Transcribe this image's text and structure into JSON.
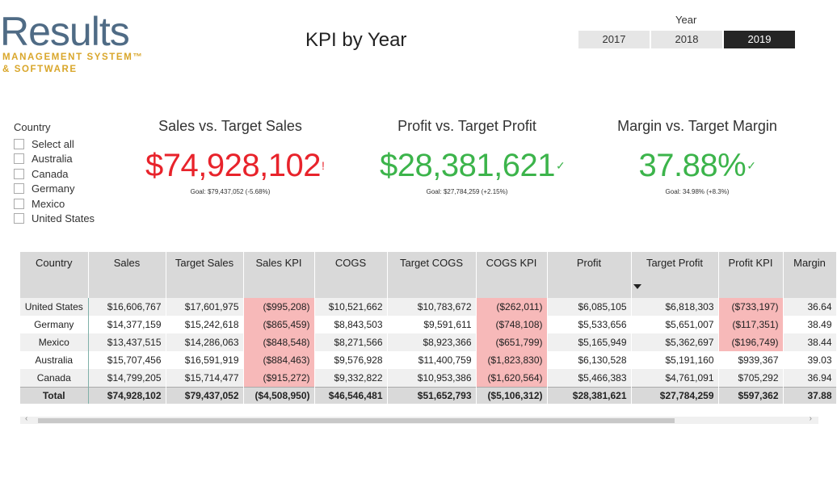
{
  "logo": {
    "main": "Results",
    "line1": "MANAGEMENT SYSTEM™",
    "line2": "& SOFTWARE"
  },
  "title": "KPI by Year",
  "year_slicer": {
    "label": "Year",
    "options": [
      "2017",
      "2018",
      "2019"
    ],
    "selected": "2019"
  },
  "country_slicer": {
    "label": "Country",
    "items": [
      "Select all",
      "Australia",
      "Canada",
      "Germany",
      "Mexico",
      "United States"
    ]
  },
  "kpis": [
    {
      "title": "Sales vs. Target Sales",
      "value": "$74,928,102",
      "mark": "!",
      "goal": "Goal: $79,437,052 (-5.68%)",
      "color": "#e8232b"
    },
    {
      "title": "Profit vs. Target Profit",
      "value": "$28,381,621",
      "mark": "✓",
      "goal": "Goal: $27,784,259 (+2.15%)",
      "color": "#3cb44b"
    },
    {
      "title": "Margin vs. Target Margin",
      "value": "37.88%",
      "mark": "✓",
      "goal": "Goal: 34.98% (+8.3%)",
      "color": "#3cb44b"
    }
  ],
  "table": {
    "columns": [
      "Country",
      "Sales",
      "Target Sales",
      "Sales KPI",
      "COGS",
      "Target COGS",
      "COGS KPI",
      "Profit",
      "Target Profit",
      "Profit KPI",
      "Margin"
    ],
    "rows": [
      [
        "United States",
        "$16,606,767",
        "$17,601,975",
        "($995,208)",
        "$10,521,662",
        "$10,783,672",
        "($262,011)",
        "$6,085,105",
        "$6,818,303",
        "($733,197)",
        "36.64"
      ],
      [
        "Germany",
        "$14,377,159",
        "$15,242,618",
        "($865,459)",
        "$8,843,503",
        "$9,591,611",
        "($748,108)",
        "$5,533,656",
        "$5,651,007",
        "($117,351)",
        "38.49"
      ],
      [
        "Mexico",
        "$13,437,515",
        "$14,286,063",
        "($848,548)",
        "$8,271,566",
        "$8,923,366",
        "($651,799)",
        "$5,165,949",
        "$5,362,697",
        "($196,749)",
        "38.44"
      ],
      [
        "Australia",
        "$15,707,456",
        "$16,591,919",
        "($884,463)",
        "$9,576,928",
        "$11,400,759",
        "($1,823,830)",
        "$6,130,528",
        "$5,191,160",
        "$939,367",
        "39.03"
      ],
      [
        "Canada",
        "$14,799,205",
        "$15,714,477",
        "($915,272)",
        "$9,332,822",
        "$10,953,386",
        "($1,620,564)",
        "$5,466,383",
        "$4,761,091",
        "$705,292",
        "36.94"
      ]
    ],
    "total": [
      "Total",
      "$74,928,102",
      "$79,437,052",
      "($4,508,950)",
      "$46,546,481",
      "$51,652,793",
      "($5,106,312)",
      "$28,381,621",
      "$27,784,259",
      "$597,362",
      "37.88"
    ]
  },
  "colors": {
    "negative_cell": "#f7b9b9",
    "accent_dark": "#252525",
    "logo_blue": "#4f6b85",
    "logo_gold": "#d9a62a"
  }
}
